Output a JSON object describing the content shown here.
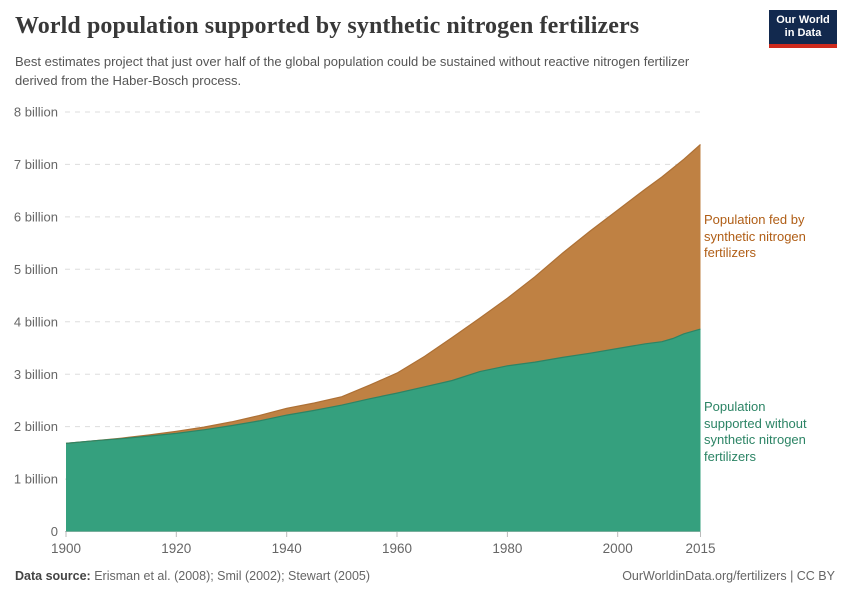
{
  "header": {
    "title": "World population supported by synthetic nitrogen fertilizers",
    "subtitle": "Best estimates project that just over half of the global population could be sustained without reactive nitrogen fertilizer derived from the Haber-Bosch process.",
    "logo": {
      "line1": "Our World",
      "line2": "in Data",
      "bg_color": "#12294e",
      "stripe_color": "#ce2a1d"
    }
  },
  "chart_data": {
    "type": "area",
    "stacked": true,
    "title": "World population supported by synthetic nitrogen fertilizers",
    "xlabel": "",
    "ylabel": "",
    "xlim": [
      1900,
      2015
    ],
    "ylim": [
      0,
      8
    ],
    "grid": "horizontal-dashed",
    "legend_position": "right-annotations",
    "x": [
      1900,
      1905,
      1910,
      1915,
      1920,
      1925,
      1930,
      1935,
      1940,
      1945,
      1950,
      1955,
      1960,
      1965,
      1970,
      1975,
      1980,
      1985,
      1990,
      1995,
      2000,
      2005,
      2008,
      2010,
      2012,
      2015
    ],
    "series": [
      {
        "name": "Population supported without synthetic nitrogen fertilizers",
        "unit": "billion",
        "fill_color": "#35a07e",
        "line_color": "#2c8465",
        "values": [
          1.68,
          1.73,
          1.77,
          1.82,
          1.87,
          1.94,
          2.02,
          2.11,
          2.22,
          2.31,
          2.41,
          2.53,
          2.64,
          2.76,
          2.88,
          3.05,
          3.16,
          3.23,
          3.32,
          3.4,
          3.49,
          3.58,
          3.62,
          3.68,
          3.77,
          3.86
        ]
      },
      {
        "name": "Population fed by synthetic nitrogen fertilizers",
        "unit": "billion",
        "fill_color": "#bf8143",
        "line_color": "#ad7035",
        "values": [
          0.0,
          0.0,
          0.01,
          0.02,
          0.04,
          0.05,
          0.07,
          0.1,
          0.13,
          0.14,
          0.16,
          0.26,
          0.38,
          0.58,
          0.82,
          1.02,
          1.29,
          1.63,
          1.99,
          2.33,
          2.64,
          2.95,
          3.14,
          3.25,
          3.33,
          3.52
        ]
      }
    ],
    "world_population_total": [
      1.68,
      1.73,
      1.78,
      1.84,
      1.91,
      1.99,
      2.09,
      2.21,
      2.35,
      2.45,
      2.57,
      2.79,
      3.02,
      3.34,
      3.7,
      4.07,
      4.45,
      4.86,
      5.31,
      5.73,
      6.13,
      6.53,
      6.76,
      6.93,
      7.1,
      7.38
    ],
    "yticks": [
      {
        "value": 8,
        "label": "8 billion"
      },
      {
        "value": 7,
        "label": "7 billion"
      },
      {
        "value": 6,
        "label": "6 billion"
      },
      {
        "value": 5,
        "label": "5 billion"
      },
      {
        "value": 4,
        "label": "4 billion"
      },
      {
        "value": 3,
        "label": "3 billion"
      },
      {
        "value": 2,
        "label": "2 billion"
      },
      {
        "value": 1,
        "label": "1 billion"
      },
      {
        "value": 0,
        "label": "0"
      }
    ],
    "xticks": [
      {
        "value": 1900,
        "label": "1900"
      },
      {
        "value": 1920,
        "label": "1920"
      },
      {
        "value": 1940,
        "label": "1940"
      },
      {
        "value": 1960,
        "label": "1960"
      },
      {
        "value": 1980,
        "label": "1980"
      },
      {
        "value": 2000,
        "label": "2000"
      },
      {
        "value": 2015,
        "label": "2015"
      }
    ],
    "colors": {
      "grid": "#dddddd",
      "axis_tick": "#bbbbbb",
      "axis_text": "#666666"
    }
  },
  "annotations": {
    "fed_label": "Population fed by\nsynthetic nitrogen\nfertilizers",
    "without_label": "Population\nsupported without\nsynthetic nitrogen\nfertilizers"
  },
  "footer": {
    "source_prefix": "Data source:",
    "source_text": " Erisman et al. (2008); Smil (2002); Stewart (2005)",
    "credit": "OurWorldinData.org/fertilizers | CC BY"
  }
}
